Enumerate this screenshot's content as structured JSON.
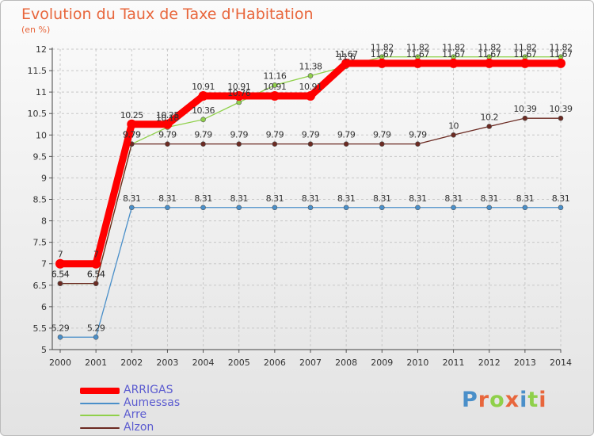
{
  "title": "Evolution du Taux de Taxe d'Habitation",
  "subtitle": "(en %)",
  "logo_text": "Proxiti",
  "colors": {
    "title": "#e8663c",
    "legend_text": "#5b5bd0"
  },
  "chart_data": {
    "type": "line",
    "x": [
      "2000",
      "2001",
      "2002",
      "2003",
      "2004",
      "2005",
      "2006",
      "2007",
      "2008",
      "2009",
      "2010",
      "2011",
      "2012",
      "2013",
      "2014"
    ],
    "ylim": [
      5,
      12
    ],
    "yticks": [
      "5",
      "5.5",
      "6",
      "6.5",
      "7",
      "7.5",
      "8",
      "8.5",
      "9",
      "9.5",
      "10",
      "10.5",
      "11",
      "11.5",
      "12"
    ],
    "grid": true,
    "legend_position": "bottom-left",
    "series": [
      {
        "name": "ARRIGAS",
        "color": "#ff0000",
        "values": [
          7,
          7,
          10.25,
          10.25,
          10.91,
          10.91,
          10.91,
          10.91,
          11.67,
          11.67,
          11.67,
          11.67,
          11.67,
          11.67,
          11.67
        ],
        "labels": [
          "7",
          "7",
          "10.25",
          "10.25",
          "10.91",
          "10.91",
          "10.91",
          "10.91",
          "11.67",
          "11.67",
          "11.67",
          "11.67",
          "11.67",
          "11.67",
          "11.67"
        ]
      },
      {
        "name": "Aumessas",
        "color": "#4a8fc9",
        "values": [
          5.29,
          5.29,
          8.31,
          8.31,
          8.31,
          8.31,
          8.31,
          8.31,
          8.31,
          8.31,
          8.31,
          8.31,
          8.31,
          8.31,
          8.31
        ],
        "labels": [
          "5.29",
          "5.29",
          "8.31",
          "8.31",
          "8.31",
          "8.31",
          "8.31",
          "8.31",
          "8.31",
          "8.31",
          "8.31",
          "8.31",
          "8.31",
          "8.31",
          "8.31"
        ]
      },
      {
        "name": "Arre",
        "color": "#8fd04a",
        "values": [
          6.54,
          6.54,
          9.79,
          10.18,
          10.36,
          10.76,
          11.16,
          11.38,
          11.6,
          11.82,
          11.82,
          11.82,
          11.82,
          11.82,
          11.82
        ],
        "labels": [
          "6.54",
          "6.54",
          "9.79",
          "10.18",
          "10.36",
          "10.76",
          "11.16",
          "11.38",
          "11.6",
          "11.82",
          "11.82",
          "11.82",
          "11.82",
          "11.82",
          "11.82"
        ]
      },
      {
        "name": "Alzon",
        "color": "#6b2a22",
        "values": [
          6.54,
          6.54,
          9.79,
          9.79,
          9.79,
          9.79,
          9.79,
          9.79,
          9.79,
          9.79,
          9.79,
          10,
          10.2,
          10.39,
          10.39
        ],
        "labels": [
          "6.54",
          "6.54",
          "9.79",
          "9.79",
          "9.79",
          "9.79",
          "9.79",
          "9.79",
          "9.79",
          "9.79",
          "9.79",
          "10",
          "10.2",
          "10.39",
          "10.39"
        ]
      }
    ]
  }
}
